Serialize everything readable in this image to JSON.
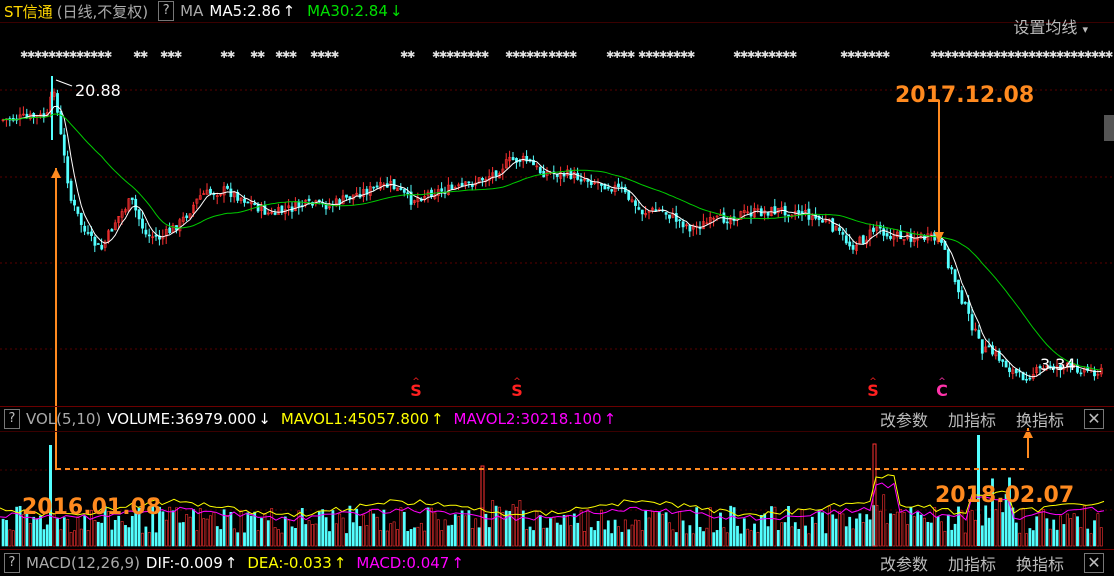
{
  "header": {
    "stock_name": "ST信通",
    "period": "(日线,不复权)",
    "help": "?",
    "indicator": "MA",
    "ma5": "MA5:2.86",
    "ma5_arrow": "↑",
    "ma30": "MA30:2.84",
    "ma30_arrow": "↓",
    "setting": "设置均线",
    "setting_caret": "▾"
  },
  "volume_panel": {
    "help": "?",
    "name": "VOL(5,10)",
    "volume": "VOLUME:36979.000",
    "volume_arrow": "↓",
    "mavol1": "MAVOL1:45057.800",
    "mavol1_arrow": "↑",
    "mavol2": "MAVOL2:30218.100",
    "mavol2_arrow": "↑",
    "tools": [
      "改参数",
      "加指标",
      "换指标"
    ],
    "close": "✕"
  },
  "macd_panel": {
    "help": "?",
    "name": "MACD(12,26,9)",
    "dif": "DIF:-0.009",
    "dif_arrow": "↑",
    "dea": "DEA:-0.033",
    "dea_arrow": "↑",
    "macd": "MACD:0.047",
    "macd_arrow": "↑",
    "tools": [
      "改参数",
      "加指标",
      "换指标"
    ],
    "close": "✕"
  },
  "annotations": {
    "high_label": "20.88",
    "low_label": "3.34",
    "date1": "2016.01.08",
    "date2": "2017.12.08",
    "date3": "2018.02.07",
    "s_marker": "S",
    "c_marker": "C"
  },
  "colors": {
    "up": "#ff3232",
    "down": "#54ffff",
    "ma5": "#ffffff",
    "ma30": "#00cc00",
    "annotation": "#ff8a1f",
    "mavol1": "#ffff00",
    "mavol2": "#ff00ff",
    "marker": "#ff2020"
  },
  "chart_data": {
    "type": "candlestick",
    "series": [
      {
        "name": "MA5",
        "last": 2.86
      },
      {
        "name": "MA30",
        "last": 2.84
      }
    ],
    "annotated_points": [
      {
        "label": "20.88",
        "kind": "high",
        "date": "2016.01.08"
      },
      {
        "label": "3.34",
        "kind": "low"
      },
      {
        "label": "2017.12.08"
      },
      {
        "label": "2018.02.07"
      }
    ],
    "volume": {
      "VOLUME": 36979.0,
      "MAVOL1": 45057.8,
      "MAVOL2": 30218.1
    },
    "macd": {
      "DIF": -0.009,
      "DEA": -0.033,
      "MACD": 0.047
    },
    "grid": true
  }
}
